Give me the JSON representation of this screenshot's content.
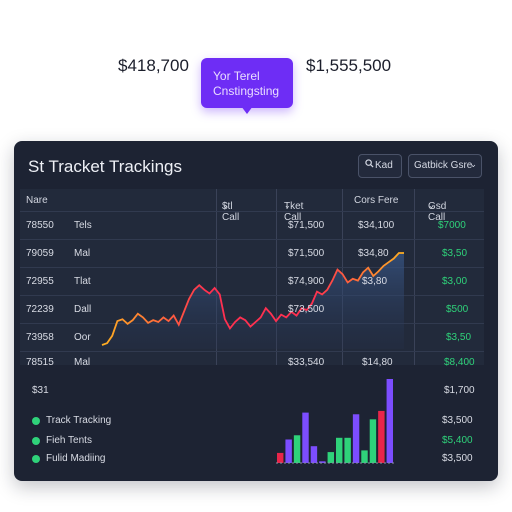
{
  "header": {
    "amount_left": "$418,700",
    "amount_right": "$1,555,500",
    "bubble_line1": "Yor Terel",
    "bubble_line2": "Cnstingsting"
  },
  "panel": {
    "title": "St Tracket Trackings",
    "search_label": "Kad",
    "sort_label": "Gatbick Gsre",
    "columns": [
      "Nare",
      "$tl Call",
      "Tket Call",
      "Cors Fere",
      "Gsd Call"
    ],
    "rows": [
      {
        "id": "78550",
        "name": "Tels",
        "col2": "$71,500",
        "col3": "$34,100",
        "col4": "$7000"
      },
      {
        "id": "79059",
        "name": "Mal",
        "col2": "$71,500",
        "col3": "$34,80",
        "col4": "$3,50"
      },
      {
        "id": "72955",
        "name": "Tlat",
        "col2": "$74,900",
        "col3": "$3,80",
        "col4": "$3,00"
      },
      {
        "id": "72239",
        "name": "Dall",
        "col2": "$73,500",
        "col3": "",
        "col4": "$500"
      },
      {
        "id": "73958",
        "name": "Oor",
        "col2": "",
        "col3": "",
        "col4": "$3,50"
      },
      {
        "id": "78515",
        "name": "Mal",
        "col2": "$33,540",
        "col3": "$14,80",
        "col4": "$8,400"
      }
    ],
    "extra_row": {
      "id": "$31",
      "col4": "$1,700"
    },
    "legend": [
      {
        "label": "Track Tracking",
        "value": "$3,500",
        "color": "#2fd27a"
      },
      {
        "label": "Fieh Tents",
        "value": "$5,400",
        "color": "#2fd27a"
      },
      {
        "label": "Fulid Madiing",
        "value": "$3,500",
        "color": "#2fd27a"
      }
    ]
  },
  "chart_data": [
    {
      "type": "line",
      "x": [
        0,
        1,
        2,
        3,
        4,
        5,
        6,
        7,
        8,
        9,
        10,
        11,
        12,
        13,
        14,
        15,
        16,
        17,
        18,
        19,
        20,
        21,
        22,
        23,
        24,
        25,
        26,
        27,
        28,
        29,
        30,
        31,
        32,
        33,
        34,
        35,
        36,
        37,
        38,
        39,
        40,
        41,
        42,
        43,
        44,
        45,
        46,
        47,
        48,
        49,
        50,
        51,
        52,
        53,
        54,
        55,
        56,
        57,
        58,
        59
      ],
      "values": [
        0,
        0.02,
        0.1,
        0.26,
        0.28,
        0.23,
        0.27,
        0.34,
        0.3,
        0.24,
        0.27,
        0.25,
        0.3,
        0.26,
        0.32,
        0.22,
        0.36,
        0.5,
        0.6,
        0.65,
        0.6,
        0.56,
        0.62,
        0.55,
        0.28,
        0.18,
        0.25,
        0.3,
        0.27,
        0.2,
        0.25,
        0.3,
        0.4,
        0.34,
        0.26,
        0.33,
        0.3,
        0.36,
        0.32,
        0.4,
        0.38,
        0.45,
        0.58,
        0.55,
        0.6,
        0.7,
        0.82,
        0.77,
        0.68,
        0.72,
        0.7,
        0.79,
        0.84,
        0.75,
        0.8,
        0.86,
        0.9,
        0.94,
        1.0,
        1.0
      ]
    },
    {
      "type": "bar",
      "categories": [
        "b1",
        "b2",
        "b3",
        "b4",
        "b5",
        "b6",
        "b7",
        "b8",
        "b9",
        "b10",
        "b11",
        "b12",
        "b13",
        "b14"
      ],
      "values": [
        0.12,
        0.28,
        0.33,
        0.6,
        0.2,
        0.02,
        0.13,
        0.3,
        0.3,
        0.58,
        0.15,
        0.52,
        0.62,
        1.0
      ],
      "colors": [
        "#e8254a",
        "#7c4dff",
        "#2fd27a",
        "#7c4dff",
        "#7c4dff",
        "#7c4dff",
        "#2fd27a",
        "#2fd27a",
        "#2fd27a",
        "#7c4dff",
        "#2fd27a",
        "#2fd27a",
        "#e8254a",
        "#7c4dff"
      ]
    }
  ]
}
